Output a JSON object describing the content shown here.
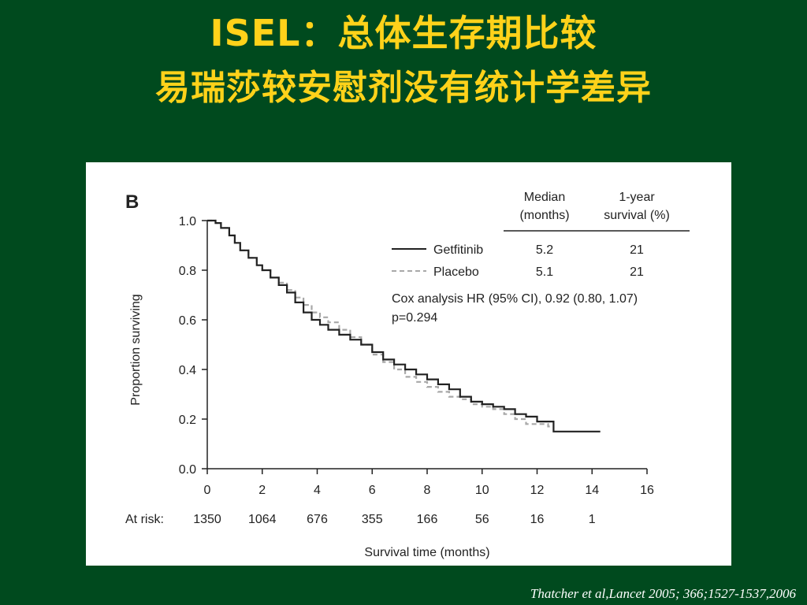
{
  "slide": {
    "title_line1_prefix": "ISEL：",
    "title_line1_rest": "总体生存期比较",
    "title_line2": "易瑞莎较安慰剂没有统计学差异",
    "citation": "Thatcher  et al,Lancet  2005; 366;1527-1537,2006",
    "colors": {
      "background": "#004a1e",
      "title": "#ffd21a",
      "citation": "#ffffff"
    }
  },
  "chart_data": {
    "type": "line",
    "panel_label": "B",
    "xlabel": "Survival time (months)",
    "ylabel": "Proportion surviving",
    "xlim": [
      0,
      16
    ],
    "ylim": [
      0,
      1.0
    ],
    "xticks": [
      0,
      2,
      4,
      6,
      8,
      10,
      12,
      14,
      16
    ],
    "yticks": [
      "0.0",
      "0.2",
      "0.4",
      "0.6",
      "0.8",
      "1.0"
    ],
    "grid": false,
    "legend_position": "top-right",
    "table": {
      "header_median": [
        "Median",
        "(months)"
      ],
      "header_survival": [
        "1-year",
        "survival (%)"
      ],
      "rows": [
        {
          "name": "Getfitinib",
          "median": "5.2",
          "survival": "21",
          "style": "solid"
        },
        {
          "name": "Placebo",
          "median": "5.1",
          "survival": "21",
          "style": "dashed"
        }
      ]
    },
    "annotation_line1": "Cox analysis HR (95% CI), 0.92 (0.80, 1.07)",
    "annotation_line2": "p=0.294",
    "at_risk": {
      "label": "At risk:",
      "times": [
        0,
        2,
        4,
        6,
        8,
        10,
        12,
        14
      ],
      "counts": [
        "1350",
        "1064",
        "676",
        "355",
        "166",
        "56",
        "16",
        "1"
      ]
    },
    "series": [
      {
        "name": "Getfitinib",
        "style": "solid",
        "color": "#222222",
        "x": [
          0,
          0.3,
          0.5,
          0.8,
          1.0,
          1.2,
          1.5,
          1.8,
          2.0,
          2.3,
          2.6,
          2.9,
          3.2,
          3.5,
          3.8,
          4.1,
          4.4,
          4.8,
          5.2,
          5.6,
          6.0,
          6.4,
          6.8,
          7.2,
          7.6,
          8.0,
          8.4,
          8.8,
          9.2,
          9.6,
          10.0,
          10.4,
          10.8,
          11.2,
          11.6,
          12.0,
          12.4,
          12.6,
          13.0,
          13.5,
          14.0,
          14.3
        ],
        "y": [
          1.0,
          0.99,
          0.97,
          0.94,
          0.91,
          0.88,
          0.85,
          0.82,
          0.8,
          0.77,
          0.74,
          0.71,
          0.67,
          0.63,
          0.6,
          0.58,
          0.56,
          0.54,
          0.52,
          0.5,
          0.47,
          0.44,
          0.42,
          0.4,
          0.38,
          0.36,
          0.34,
          0.32,
          0.29,
          0.27,
          0.26,
          0.25,
          0.24,
          0.22,
          0.21,
          0.19,
          0.19,
          0.15,
          0.15,
          0.15,
          0.15,
          0.15
        ]
      },
      {
        "name": "Placebo",
        "style": "dashed",
        "color": "#a8a8a8",
        "x": [
          0,
          0.3,
          0.5,
          0.8,
          1.0,
          1.2,
          1.5,
          1.8,
          2.0,
          2.3,
          2.6,
          2.9,
          3.2,
          3.5,
          3.8,
          4.1,
          4.4,
          4.8,
          5.2,
          5.6,
          6.0,
          6.4,
          6.8,
          7.2,
          7.6,
          8.0,
          8.4,
          8.8,
          9.2,
          9.6,
          10.0,
          10.4,
          10.8,
          11.2,
          11.6,
          12.0,
          12.4,
          12.6
        ],
        "y": [
          1.0,
          0.99,
          0.97,
          0.94,
          0.91,
          0.88,
          0.85,
          0.82,
          0.8,
          0.77,
          0.75,
          0.72,
          0.69,
          0.66,
          0.63,
          0.61,
          0.59,
          0.56,
          0.53,
          0.5,
          0.46,
          0.43,
          0.4,
          0.37,
          0.35,
          0.33,
          0.31,
          0.29,
          0.28,
          0.26,
          0.25,
          0.24,
          0.22,
          0.2,
          0.18,
          0.18,
          0.17,
          0.17
        ]
      }
    ]
  }
}
